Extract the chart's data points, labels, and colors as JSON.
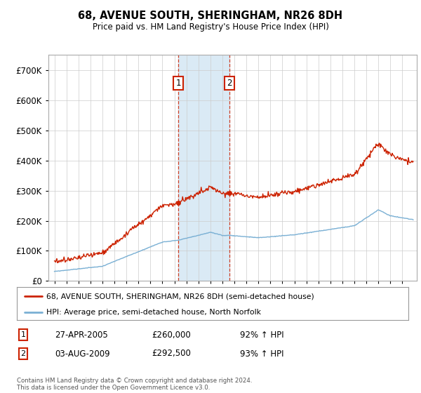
{
  "title": "68, AVENUE SOUTH, SHERINGHAM, NR26 8DH",
  "subtitle": "Price paid vs. HM Land Registry's House Price Index (HPI)",
  "hpi_color": "#7ab0d4",
  "price_color": "#cc2200",
  "background_color": "#ffffff",
  "plot_bg_color": "#ffffff",
  "grid_color": "#cccccc",
  "shade_color": "#daeaf5",
  "transaction1_x": 2005.32,
  "transaction1_y": 260000,
  "transaction2_x": 2009.59,
  "transaction2_y": 292500,
  "legend_house_label": "68, AVENUE SOUTH, SHERINGHAM, NR26 8DH (semi-detached house)",
  "legend_hpi_label": "HPI: Average price, semi-detached house, North Norfolk",
  "footnote": "Contains HM Land Registry data © Crown copyright and database right 2024.\nThis data is licensed under the Open Government Licence v3.0.",
  "table_rows": [
    {
      "num": "1",
      "date": "27-APR-2005",
      "price": "£260,000",
      "hpi": "92% ↑ HPI"
    },
    {
      "num": "2",
      "date": "03-AUG-2009",
      "price": "£292,500",
      "hpi": "93% ↑ HPI"
    }
  ],
  "ylim": [
    0,
    750000
  ],
  "yticks": [
    0,
    100000,
    200000,
    300000,
    400000,
    500000,
    600000,
    700000
  ],
  "xlim_start": 1994.5,
  "xlim_end": 2025.2
}
